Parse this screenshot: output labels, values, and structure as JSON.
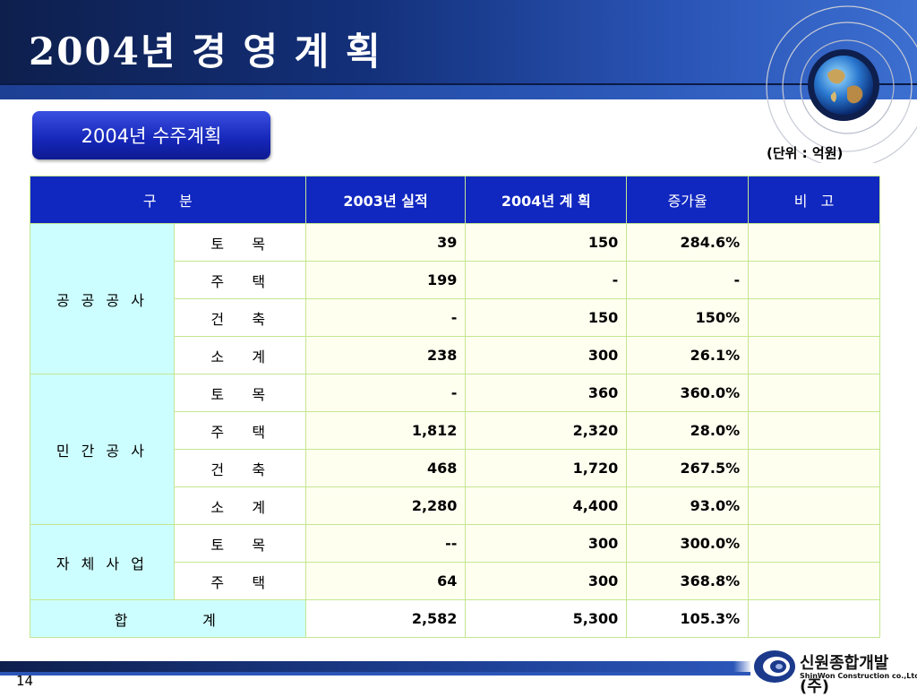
{
  "title": "2004년 경 영 계 획",
  "section_badge": "2004년 수주계획",
  "unit_note": "(단위 : 억원)",
  "table": {
    "headers": [
      "구     분",
      "2003년 실적",
      "2004년 계 획",
      "증가율",
      "비   고"
    ],
    "groups": [
      {
        "name": "공 공 공 사",
        "rows": [
          {
            "label": "토   목",
            "y2003": "39",
            "y2004": "150",
            "rate": "284.6%",
            "note": ""
          },
          {
            "label": "주   택",
            "y2003": "199",
            "y2004": "-",
            "rate": "-",
            "note": ""
          },
          {
            "label": "건   축",
            "y2003": "-",
            "y2004": "150",
            "rate": "150%",
            "note": ""
          },
          {
            "label": "소   계",
            "y2003": "238",
            "y2004": "300",
            "rate": "26.1%",
            "note": ""
          }
        ]
      },
      {
        "name": "민 간 공 사",
        "rows": [
          {
            "label": "토   목",
            "y2003": "-",
            "y2004": "360",
            "rate": "360.0%",
            "note": ""
          },
          {
            "label": "주   택",
            "y2003": "1,812",
            "y2004": "2,320",
            "rate": "28.0%",
            "note": ""
          },
          {
            "label": "건   축",
            "y2003": "468",
            "y2004": "1,720",
            "rate": "267.5%",
            "note": ""
          },
          {
            "label": "소   계",
            "y2003": "2,280",
            "y2004": "4,400",
            "rate": "93.0%",
            "note": ""
          }
        ]
      },
      {
        "name": "자 체 사 업",
        "rows": [
          {
            "label": "토   목",
            "y2003": "--",
            "y2004": "300",
            "rate": "300.0%",
            "note": ""
          },
          {
            "label": "주   택",
            "y2003": "64",
            "y2004": "300",
            "rate": "368.8%",
            "note": ""
          }
        ]
      }
    ],
    "total": {
      "label": "합       계",
      "y2003": "2,582",
      "y2004": "5,300",
      "rate": "105.3%",
      "note": ""
    }
  },
  "footer": {
    "page_number": "14",
    "logo_name": "신원종합개발(주)",
    "logo_sub": "ShinWon Construction co.,Ltd."
  },
  "icons": {
    "header_globe": "globe-icon",
    "logo_mark": "company-logo-icon"
  },
  "colors": {
    "header": "#13307a",
    "badge": "#1526b8",
    "table_header": "#1027c0",
    "group_cell": "#cdfeff",
    "value_cell": "#fffff0"
  }
}
